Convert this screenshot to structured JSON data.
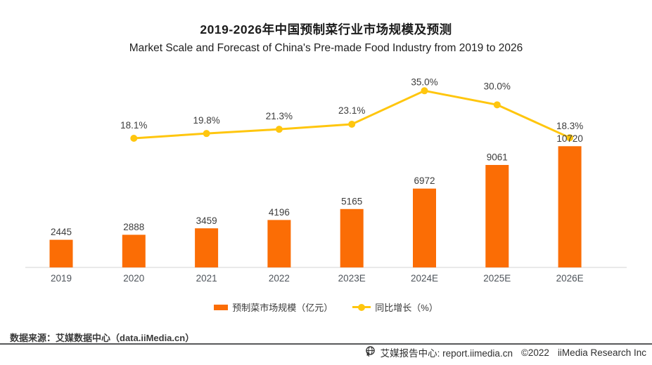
{
  "title": "2019-2026年中国预制菜行业市场规模及预测",
  "subtitle": "Market Scale and Forecast of China's Pre-made Food Industry from 2019 to 2026",
  "colors": {
    "bar": "#fb6d05",
    "line": "#ffc60e",
    "axis": "#e9e9e9",
    "value_label": "#3d3d3d",
    "tick_label": "#4e545b",
    "footer_rule": "#58595b"
  },
  "chart_data": {
    "type": "bar+line",
    "title": "2019-2026年中国预制菜行业市场规模及预测",
    "subtitle": "Market Scale and Forecast of China's Pre-made Food Industry from 2019 to 2026",
    "categories": [
      "2019",
      "2020",
      "2021",
      "2022",
      "2023E",
      "2024E",
      "2025E",
      "2026E"
    ],
    "series": [
      {
        "name": "预制菜市场规模（亿元）",
        "type": "bar",
        "values": [
          2445,
          2888,
          3459,
          4196,
          5165,
          6972,
          9061,
          10720
        ],
        "labels": [
          "2445",
          "2888",
          "3459",
          "4196",
          "5165",
          "6972",
          "9061",
          "10720"
        ]
      },
      {
        "name": "同比增长（%）",
        "type": "line",
        "x_categories": [
          "2020",
          "2021",
          "2022",
          "2023E",
          "2024E",
          "2025E",
          "2026E"
        ],
        "values": [
          18.1,
          19.8,
          21.3,
          23.1,
          35.0,
          30.0,
          18.3
        ],
        "labels": [
          "18.1%",
          "19.8%",
          "21.3%",
          "23.1%",
          "35.0%",
          "30.0%",
          "18.3%"
        ]
      }
    ],
    "grid": false,
    "value_axes_hidden": true,
    "legend_position": "bottom",
    "bar_value_range_implied": [
      0,
      10720
    ],
    "pct_value_range_implied": [
      0,
      35
    ]
  },
  "legend": {
    "bar_label": "预制菜市场规模（亿元）",
    "line_label": "同比增长（%）"
  },
  "source": "数据来源：艾媒数据中心（data.iiMedia.cn）",
  "footer": {
    "report_center": "艾媒报告中心: report.iimedia.cn",
    "copyright": "©2022",
    "company": "iiMedia Research Inc"
  }
}
